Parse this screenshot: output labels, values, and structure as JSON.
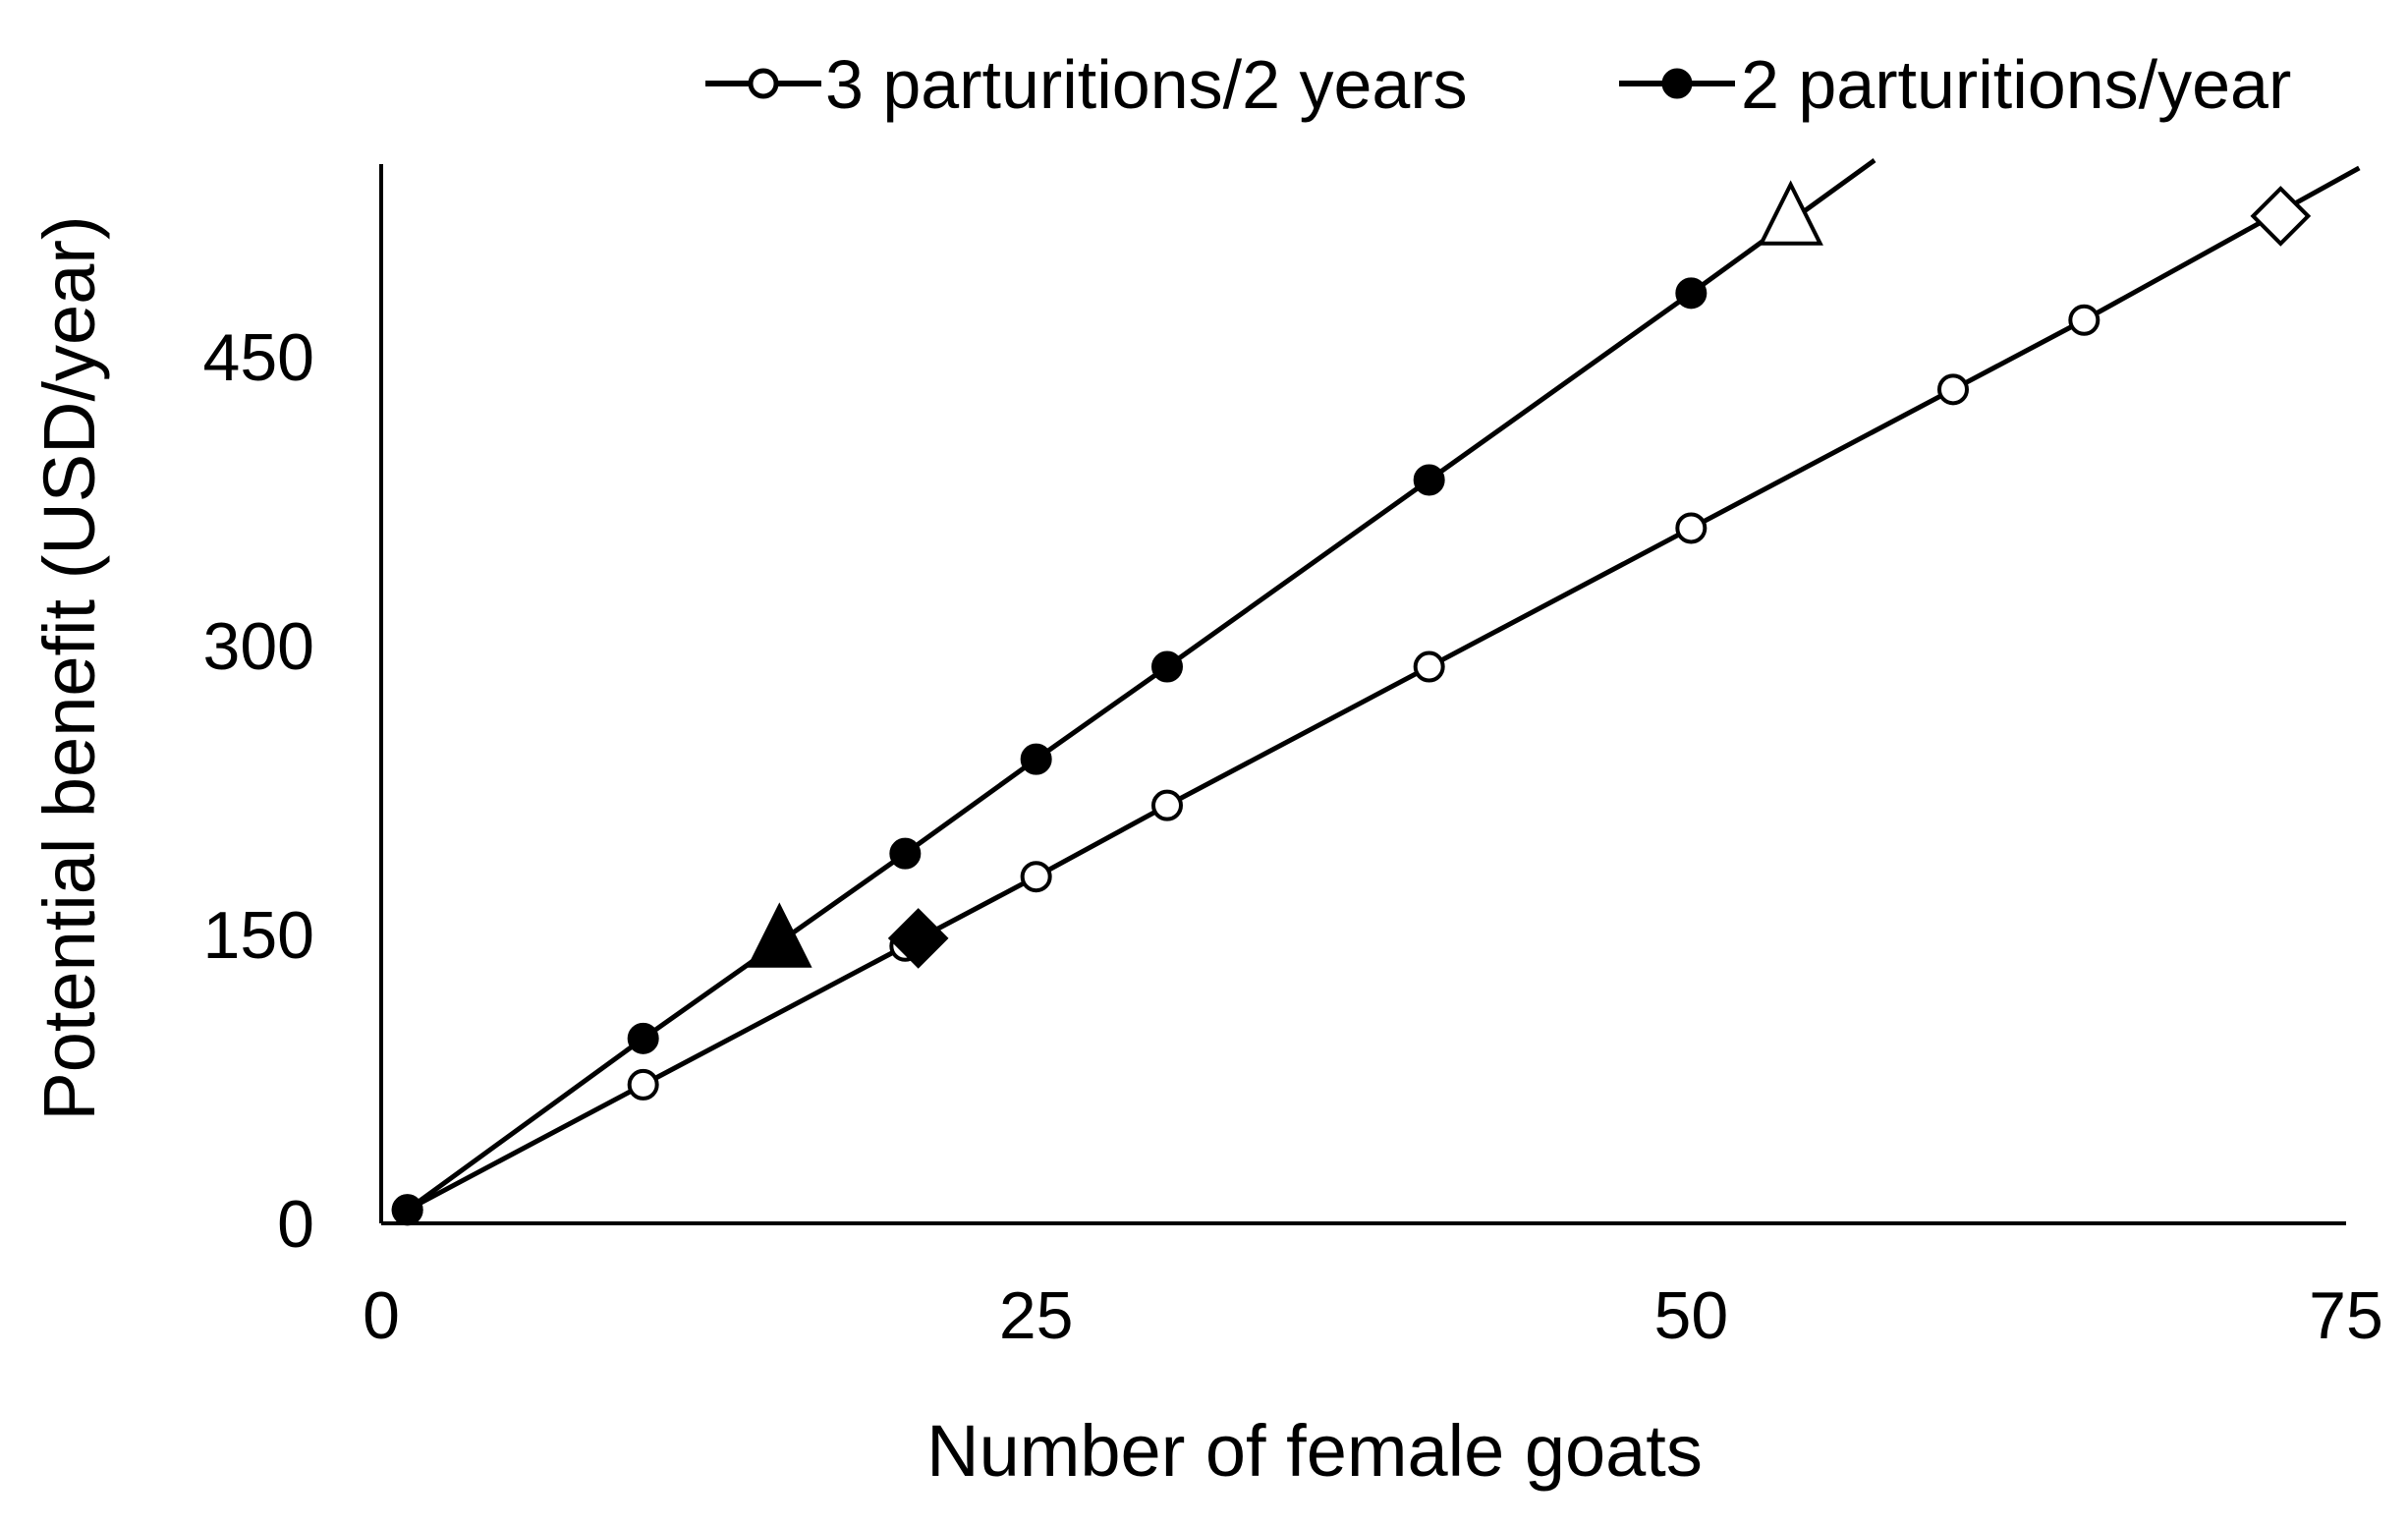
{
  "chart_data": {
    "type": "line",
    "xlabel": "Number of female goats",
    "ylabel": "Potential benefit (USD/year)",
    "xlim": [
      0,
      75
    ],
    "ylim": [
      0,
      550
    ],
    "xticks": [
      0,
      25,
      50,
      75
    ],
    "yticks": [
      0,
      150,
      300,
      450
    ],
    "grid": false,
    "legend_position": "top",
    "series": [
      {
        "name": "3 parturitions/2 years",
        "marker": "open-circle",
        "x": [
          1,
          10,
          20,
          25,
          30,
          40,
          50,
          60,
          65
        ],
        "y": [
          7,
          72,
          144,
          180,
          217,
          289,
          361,
          433,
          469
        ]
      },
      {
        "name": "2 parturitions/year",
        "marker": "filled-circle",
        "x": [
          1,
          10,
          20,
          25,
          30,
          40,
          50
        ],
        "y": [
          7,
          96,
          192,
          241,
          289,
          386,
          483
        ]
      }
    ],
    "extended_lines": [
      {
        "series": "3 parturitions/2 years",
        "x_end": 75.5,
        "y_end": 548
      },
      {
        "series": "2 parturitions/year",
        "x_end": 57,
        "y_end": 552
      }
    ],
    "special_markers": [
      {
        "shape": "triangle",
        "fill": "filled",
        "x": 15.2,
        "y": 145
      },
      {
        "shape": "diamond",
        "fill": "filled",
        "x": 20.5,
        "y": 148
      },
      {
        "shape": "triangle",
        "fill": "open",
        "x": 53.8,
        "y": 520
      },
      {
        "shape": "diamond",
        "fill": "open",
        "x": 72.5,
        "y": 523
      }
    ]
  },
  "colors": {
    "line": "#000000",
    "background": "#ffffff"
  }
}
